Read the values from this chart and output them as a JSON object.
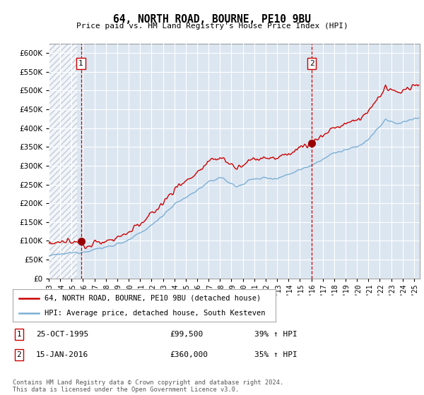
{
  "title": "64, NORTH ROAD, BOURNE, PE10 9BU",
  "subtitle": "Price paid vs. HM Land Registry's House Price Index (HPI)",
  "ylabel_values": [
    0,
    50000,
    100000,
    150000,
    200000,
    250000,
    300000,
    350000,
    400000,
    450000,
    500000,
    550000,
    600000
  ],
  "ylim": [
    0,
    625000
  ],
  "xlim_start": 1993.0,
  "xlim_end": 2025.5,
  "sale1_date": 1995.82,
  "sale1_price": 99500,
  "sale2_date": 2016.04,
  "sale2_price": 360000,
  "legend_line1": "64, NORTH ROAD, BOURNE, PE10 9BU (detached house)",
  "legend_line2": "HPI: Average price, detached house, South Kesteven",
  "annotation1_label": "1",
  "annotation1_date": "25-OCT-1995",
  "annotation1_price": "£99,500",
  "annotation1_hpi": "39% ↑ HPI",
  "annotation2_label": "2",
  "annotation2_date": "15-JAN-2016",
  "annotation2_price": "£360,000",
  "annotation2_hpi": "35% ↑ HPI",
  "footer": "Contains HM Land Registry data © Crown copyright and database right 2024.\nThis data is licensed under the Open Government Licence v3.0.",
  "red_color": "#cc0000",
  "blue_color": "#7bafd4",
  "bg_color": "#dce6f1",
  "hatch_color": "#aab4c4",
  "grid_color": "#ffffff",
  "vline_color": "#cc0000"
}
